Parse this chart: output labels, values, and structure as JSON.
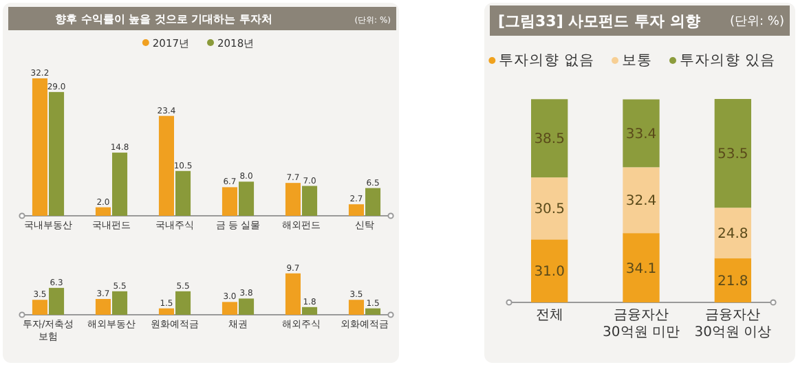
{
  "chart_data": [
    {
      "type": "bar",
      "title": "향후 수익률이 높을 것으로 기대하는 투자처",
      "subtitle": "(단위: %)",
      "categories": [
        "국내부동산",
        "국내펀드",
        "국내주식",
        "금 등 실물",
        "해외펀드",
        "신탁"
      ],
      "series": [
        {
          "name": "2017년",
          "color": "#f0a020",
          "values": [
            32.2,
            2.0,
            23.4,
            6.7,
            7.7,
            2.7
          ],
          "value_labels": [
            "32.2",
            "2.0",
            "23.4",
            "6.7",
            "7.7",
            "2.7"
          ]
        },
        {
          "name": "2018년",
          "color": "#8a9a3a",
          "values": [
            29.0,
            14.8,
            10.5,
            8.0,
            7.0,
            6.5
          ],
          "value_labels": [
            "29.0",
            "14.8",
            "10.5",
            "8.0",
            "7.0",
            "6.5"
          ]
        }
      ],
      "tick_labels": "x",
      "legend": "top"
    },
    {
      "type": "bar",
      "categories": [
        "투자/저축성 보험",
        "해외부동산",
        "원화예적금",
        "채권",
        "해외주식",
        "외화예적금"
      ],
      "series": [
        {
          "color": "#f0a020",
          "values": [
            3.5,
            3.7,
            1.5,
            3.0,
            9.7,
            3.5
          ],
          "value_labels": [
            "3.5",
            "3.7",
            "1.5",
            "3.0",
            "9.7",
            "3.5"
          ]
        },
        {
          "color": "#8a9a3a",
          "values": [
            6.3,
            5.5,
            5.5,
            3.8,
            1.8,
            1.5
          ],
          "value_labels": [
            "6.3",
            "5.5",
            "5.5",
            "3.8",
            "1.8",
            "1.5"
          ]
        }
      ],
      "tick_labels": "x"
    },
    {
      "type": "bar",
      "stacked": true,
      "title": "[그림33] 사모펀드 투자 의향",
      "subtitle": "(단위: %)",
      "categories": [
        "전체",
        "금융자산 30억원 미만",
        "금융자산 30억원 이상"
      ],
      "series": [
        {
          "name": "투자의향 없음",
          "color": "#f0a21e",
          "values": [
            31.0,
            34.1,
            21.8
          ],
          "value_labels": [
            "31.0",
            "34.1",
            "21.8"
          ]
        },
        {
          "name": "보통",
          "color": "#f7cf94",
          "values": [
            30.5,
            32.4,
            24.8
          ],
          "value_labels": [
            "30.5",
            "32.4",
            "24.8"
          ]
        },
        {
          "name": "투자의향 있음",
          "color": "#8c9c3c",
          "values": [
            38.5,
            33.4,
            53.5
          ],
          "value_labels": [
            "38.5",
            "33.4",
            "53.5"
          ]
        }
      ],
      "tick_labels": "x",
      "legend": "top"
    }
  ]
}
